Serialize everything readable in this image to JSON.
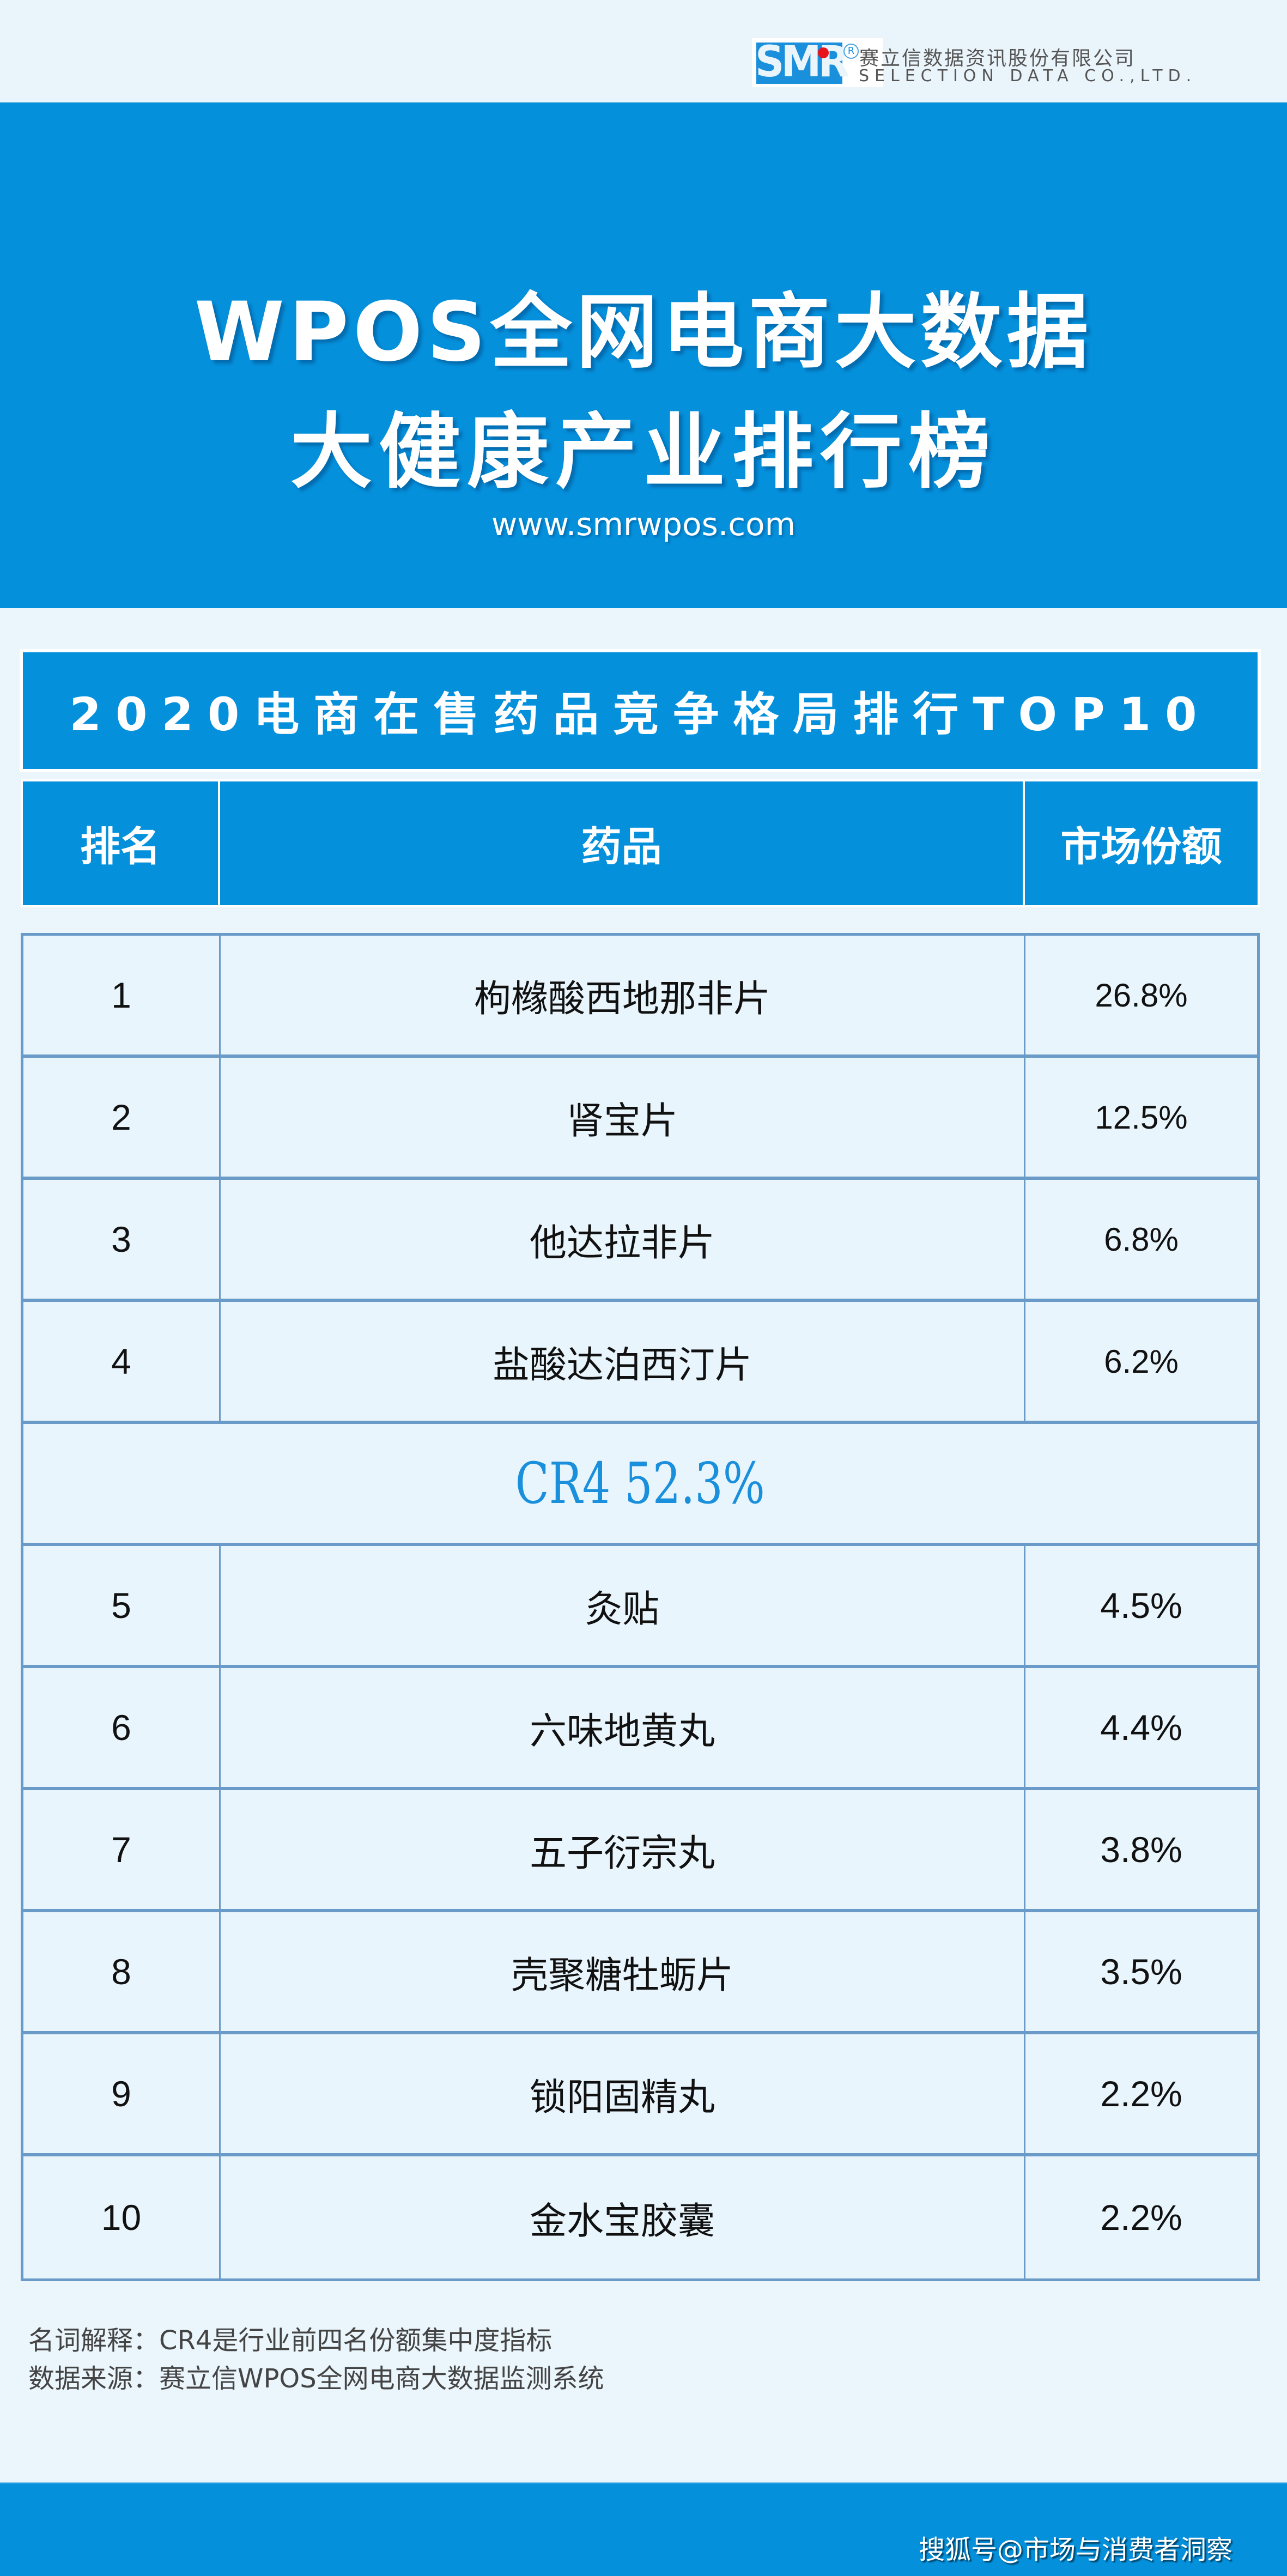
{
  "logo": {
    "mark": "SMR",
    "registered": "R",
    "company_cn": "赛立信数据资讯股份有限公司",
    "company_en": "SELECTION DATA CO.,LTD."
  },
  "hero": {
    "title_line1": "WPOS全网电商大数据",
    "title_line2": "大健康产业排行榜",
    "url": "www.smrwpos.com"
  },
  "table": {
    "title": "2020电商在售药品竞争格局排行TOP10",
    "headers": [
      "排名",
      "药品",
      "市场份额"
    ],
    "rows_top4": [
      {
        "rank": "1",
        "drug": "枸橼酸西地那非片",
        "share": "26.8%"
      },
      {
        "rank": "2",
        "drug": "肾宝片",
        "share": "12.5%"
      },
      {
        "rank": "3",
        "drug": "他达拉非片",
        "share": "6.8%"
      },
      {
        "rank": "4",
        "drug": "盐酸达泊西汀片",
        "share": "6.2%"
      }
    ],
    "cr4": "CR4 52.3%",
    "rows_rest": [
      {
        "rank": "5",
        "drug": "灸贴",
        "share": "4.5%"
      },
      {
        "rank": "6",
        "drug": "六味地黄丸",
        "share": "4.4%"
      },
      {
        "rank": "7",
        "drug": "五子衍宗丸",
        "share": "3.8%"
      },
      {
        "rank": "8",
        "drug": "壳聚糖牡蛎片",
        "share": "3.5%"
      },
      {
        "rank": "9",
        "drug": "锁阳固精丸",
        "share": "2.2%"
      },
      {
        "rank": "10",
        "drug": "金水宝胶囊",
        "share": "2.2%"
      }
    ]
  },
  "notes": {
    "definition": "名词解释：CR4是行业前四名份额集中度指标",
    "source": "数据来源：赛立信WPOS全网电商大数据监测系统"
  },
  "footer": {
    "watermark": "搜狐号@市场与消费者洞察"
  },
  "colors": {
    "brand_blue": "#0590dc",
    "background": "#eaf5fc",
    "grid_line": "#6a9bc8",
    "cr4_text": "#1a8fdb",
    "logo_dot": "#e8141c"
  }
}
